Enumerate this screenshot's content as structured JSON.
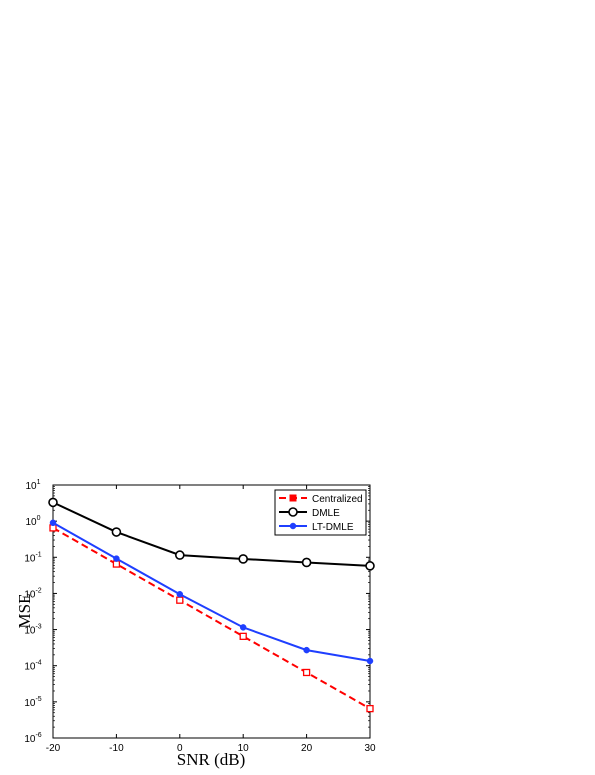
{
  "chart_data": {
    "type": "line",
    "xlabel": "SNR (dB)",
    "ylabel": "MSE",
    "x": [
      -20,
      -10,
      0,
      10,
      20,
      30
    ],
    "xlim": [
      -20,
      30
    ],
    "ylim": [
      1e-06,
      10
    ],
    "yscale": "log",
    "x_ticks": [
      "-20",
      "-10",
      "0",
      "10",
      "20",
      "30"
    ],
    "y_ticks": [
      {
        "base": "10",
        "exp": "-6",
        "value": 1e-06
      },
      {
        "base": "10",
        "exp": "-5",
        "value": 1e-05
      },
      {
        "base": "10",
        "exp": "-4",
        "value": 0.0001
      },
      {
        "base": "10",
        "exp": "-3",
        "value": 0.001
      },
      {
        "base": "10",
        "exp": "-2",
        "value": 0.01
      },
      {
        "base": "10",
        "exp": "-1",
        "value": 0.1
      },
      {
        "base": "10",
        "exp": "0",
        "value": 1
      },
      {
        "base": "10",
        "exp": "1",
        "value": 10
      }
    ],
    "grid": false,
    "legend_position": "top-right",
    "series": [
      {
        "name": "Centralized",
        "color": "#ff0000",
        "line_style": "dashed",
        "marker": "square",
        "values": [
          0.65,
          0.065,
          0.0065,
          0.00065,
          6.5e-05,
          6.5e-06
        ]
      },
      {
        "name": "DMLE",
        "color": "#000000",
        "line_style": "solid",
        "marker": "circle",
        "values": [
          3.3,
          0.5,
          0.115,
          0.09,
          0.072,
          0.058
        ]
      },
      {
        "name": "LT-DMLE",
        "color": "#1f3fff",
        "line_style": "solid",
        "marker": "dot",
        "values": [
          0.9,
          0.092,
          0.0095,
          0.00115,
          0.00027,
          0.000135
        ]
      }
    ]
  }
}
